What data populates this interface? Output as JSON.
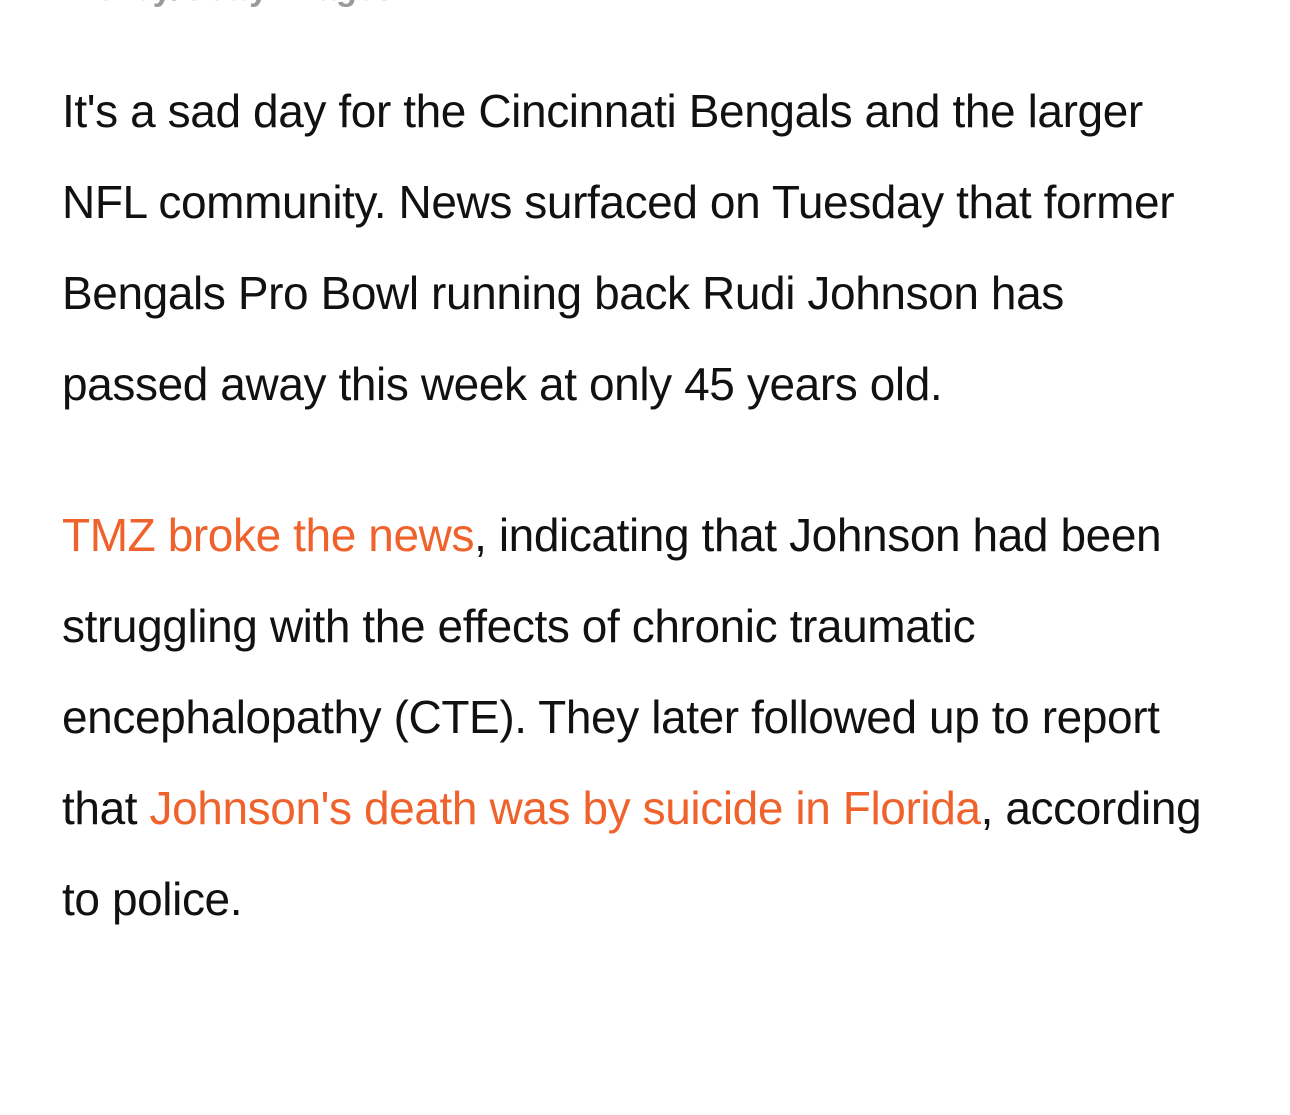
{
  "caption": "Hickey/Getty Images",
  "paragraphs": [
    {
      "segments": [
        {
          "text": "It's a sad day for the Cincinnati Bengals and the larger NFL community. News surfaced on Tuesday that former Bengals Pro Bowl running back Rudi Johnson has passed away this week at only 45 years old."
        }
      ]
    },
    {
      "segments": [
        {
          "text": "TMZ broke the news",
          "link": true
        },
        {
          "text": ", indicating that Johnson had been struggling with the effects of chronic traumatic encephalopathy (CTE). They later followed up to report that "
        },
        {
          "text": "Johnson's death was by suicide in Florida",
          "link": true
        },
        {
          "text": ", according to police."
        }
      ]
    }
  ]
}
